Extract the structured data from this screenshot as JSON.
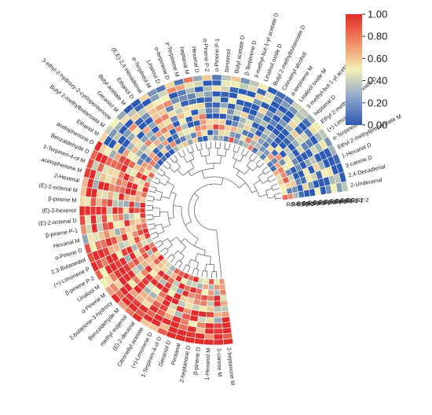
{
  "chart_data": {
    "type": "heatmap",
    "layout": "circular",
    "colorscale": {
      "min": 0,
      "max": 1,
      "colors": [
        "#2b59b3",
        "#f4f0b4",
        "#e32b2b"
      ],
      "ticks": [
        "1.00",
        "0.80",
        "0.60",
        "0.40",
        "0.20",
        "0.00"
      ]
    },
    "samples": [
      "RG-02-2",
      "RG-02-1",
      "RG-02-3",
      "RG-04-3",
      "RG-04-2",
      "RG-04-1",
      "RG-01-2",
      "RG-01-1",
      "RG-01-3",
      "RG-03-3",
      "RG-03-2",
      "RG-03-1"
    ],
    "compounds": [
      "2-Undecenal",
      "2,4-Decadienal",
      "3-carene D",
      "1-Hexanol D",
      "Ethyl 2-methylpropanoate M",
      "α-Terpineol D",
      "(+)-Limonene M",
      "Ethyl 2-methylpropanoate D",
      "heptanal D",
      "3-methyl-but-1-yl acetate M",
      "Linalool oxide M",
      "α-terpinene M",
      "Cinnamyl alcohol",
      "Butyl 2-methylbutanoate D",
      "Linalool oxide D",
      "3-methyl-but-1-yl acetate D",
      "β-Terpinene D",
      "Butyl acetate D",
      "benzenol",
      "α-Pinene P-1",
      "α-Pinene P-2",
      "Hexanal D",
      "heptanal M",
      "γ-Terpinene M",
      "α-terpinene D",
      "Linalool D",
      "α-Terpineol M",
      "(E,E)-2,4-Hexadienal",
      "Ethanol D",
      "Butyl acetate M",
      "Geraniol M",
      "3-ethyl-2-hydroxy-2-cyclopentenone",
      "Butyl 2-methylbutanoate M",
      "Ethanol M",
      "acetophenone D",
      "Benzaldehyde D",
      "1-Terpinen-4-ol M",
      "acetophenone M",
      "2-Hexenal",
      "(E)-2-octenal M",
      "β-pinene M",
      "(E)-2-hexenol",
      "(E)-2-octenal D",
      "β-pinene P-1",
      "Hexanal M",
      "α-Pinene D",
      "2,3-Butanediol",
      "(+)-Limonene P",
      "β-pinene P-2",
      "Linalool M",
      "α-Pinene M",
      "2-butanone-3-hydroxy",
      "Benzaldehyde M",
      "methyl eugenol",
      "(E)-2-decenal",
      "Citronellyl acetate",
      "(+)-Limonene D",
      "1-Terpinen-4-ol D",
      "Geraniol D",
      "Pentanal",
      "2-heptanone D",
      "β-pinene D",
      "1-Hexanol M",
      "3-carene M",
      "2-heptanone M"
    ]
  }
}
